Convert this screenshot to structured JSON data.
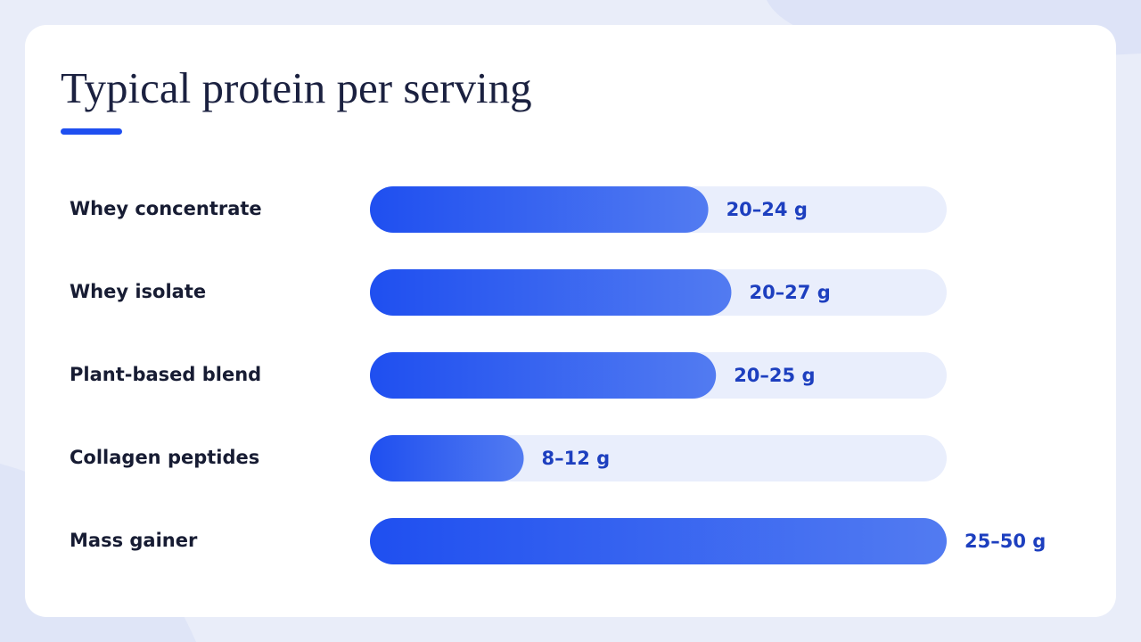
{
  "chart_data": {
    "type": "bar",
    "orientation": "horizontal",
    "title": "Typical protein per serving",
    "categories": [
      "Whey concentrate",
      "Whey isolate",
      "Plant-based blend",
      "Collagen peptides",
      "Mass gainer"
    ],
    "values": [
      22,
      23.5,
      22.5,
      10,
      37.5
    ],
    "value_labels": [
      "20–24 g",
      "20–27 g",
      "20–25 g",
      "8–12 g",
      "25–50 g"
    ],
    "color": "#1f4ff0",
    "xlim": [
      0,
      37.5
    ]
  }
}
